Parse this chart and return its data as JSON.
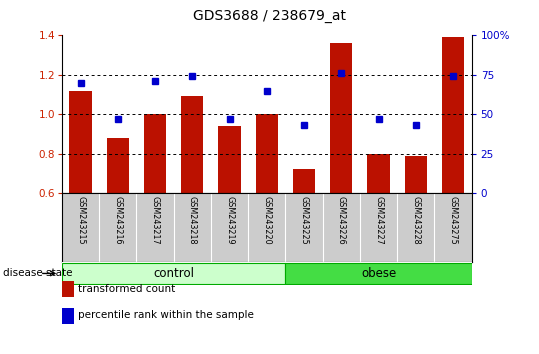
{
  "title": "GDS3688 / 238679_at",
  "samples": [
    "GSM243215",
    "GSM243216",
    "GSM243217",
    "GSM243218",
    "GSM243219",
    "GSM243220",
    "GSM243225",
    "GSM243226",
    "GSM243227",
    "GSM243228",
    "GSM243275"
  ],
  "transformed_count": [
    1.12,
    0.88,
    1.0,
    1.09,
    0.94,
    1.0,
    0.72,
    1.36,
    0.8,
    0.79,
    1.39
  ],
  "percentile_rank_pct": [
    70,
    47,
    71,
    74,
    47,
    65,
    43,
    76,
    47,
    43,
    74
  ],
  "ylim_left": [
    0.6,
    1.4
  ],
  "ylim_right": [
    0,
    100
  ],
  "yticks_left": [
    0.6,
    0.8,
    1.0,
    1.2,
    1.4
  ],
  "yticks_right": [
    0,
    25,
    50,
    75,
    100
  ],
  "ytick_right_labels": [
    "0",
    "25",
    "50",
    "75",
    "100%"
  ],
  "grid_vals": [
    0.8,
    1.0,
    1.2
  ],
  "groups": [
    {
      "label": "control",
      "start": 0,
      "end": 5,
      "color": "#ccffcc",
      "edge": "#00aa00"
    },
    {
      "label": "obese",
      "start": 6,
      "end": 10,
      "color": "#44dd44",
      "edge": "#00aa00"
    }
  ],
  "bar_color": "#bb1100",
  "dot_color": "#0000cc",
  "tick_color_left": "#cc2200",
  "tick_color_right": "#0000cc",
  "bg_color": "#cccccc",
  "plot_bg": "#ffffff",
  "bar_width": 0.6,
  "legend_items": [
    {
      "color": "#bb1100",
      "label": "transformed count"
    },
    {
      "color": "#0000cc",
      "label": "percentile rank within the sample"
    }
  ]
}
